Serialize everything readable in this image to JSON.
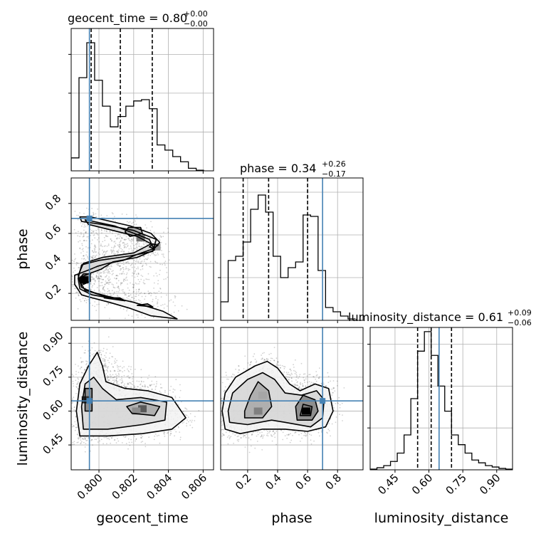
{
  "chart_data": {
    "type": "corner",
    "parameters": [
      "geocent_time",
      "phase",
      "luminosity_distance"
    ],
    "titles": [
      {
        "name": "geocent_time",
        "value": "0.80",
        "plus": "+0.00",
        "minus": "−0.00"
      },
      {
        "name": "phase",
        "value": "0.34",
        "plus": "+0.26",
        "minus": "−0.17"
      },
      {
        "name": "luminosity_distance",
        "value": "0.61",
        "plus": "+0.09",
        "minus": "−0.06"
      }
    ],
    "axis_ranges": {
      "geocent_time": [
        0.7984,
        0.8066
      ],
      "phase": [
        0.02,
        0.97
      ],
      "luminosity_distance": [
        0.34,
        0.97
      ]
    },
    "ticks": {
      "geocent_time": {
        "values": [
          0.8,
          0.802,
          0.804,
          0.806
        ],
        "labels": [
          "0.800",
          "0.802",
          "0.804",
          "0.806"
        ]
      },
      "phase": {
        "values": [
          0.2,
          0.4,
          0.6,
          0.8
        ],
        "labels": [
          "0.2",
          "0.4",
          "0.6",
          "0.8"
        ]
      },
      "luminosity_distance": {
        "values": [
          0.45,
          0.6,
          0.75,
          0.9
        ],
        "labels": [
          "0.45",
          "0.60",
          "0.75",
          "0.90"
        ]
      }
    },
    "truths": {
      "geocent_time": 0.79945,
      "phase": 0.7,
      "luminosity_distance": 0.645
    },
    "quantiles": {
      "geocent_time": [
        0.79955,
        0.80123,
        0.80307
      ],
      "phase": [
        0.17,
        0.34,
        0.6
      ],
      "luminosity_distance": [
        0.55,
        0.61,
        0.7
      ]
    },
    "histograms": {
      "geocent_time": {
        "edges": [
          0.7984,
          0.79885,
          0.7993,
          0.79975,
          0.8002,
          0.80065,
          0.8011,
          0.80155,
          0.802,
          0.80245,
          0.8029,
          0.80335,
          0.8038,
          0.80425,
          0.8047,
          0.80515,
          0.8056,
          0.80605
        ],
        "counts": [
          0.1,
          0.72,
          0.99,
          0.7,
          0.5,
          0.34,
          0.42,
          0.5,
          0.54,
          0.55,
          0.48,
          0.2,
          0.16,
          0.11,
          0.07,
          0.02,
          0.005
        ]
      },
      "phase": {
        "edges": [
          0.02,
          0.07,
          0.12,
          0.17,
          0.22,
          0.27,
          0.32,
          0.37,
          0.42,
          0.47,
          0.52,
          0.57,
          0.62,
          0.67,
          0.72,
          0.77,
          0.82,
          0.87,
          0.92
        ],
        "counts": [
          0.13,
          0.42,
          0.45,
          0.55,
          0.78,
          0.88,
          0.76,
          0.45,
          0.3,
          0.37,
          0.41,
          0.74,
          0.73,
          0.35,
          0.09,
          0.06,
          0.03,
          0.01
        ]
      },
      "luminosity_distance": {
        "edges": [
          0.34,
          0.37,
          0.4,
          0.43,
          0.46,
          0.49,
          0.52,
          0.55,
          0.58,
          0.61,
          0.64,
          0.67,
          0.7,
          0.73,
          0.76,
          0.79,
          0.82,
          0.85,
          0.88,
          0.91,
          0.94,
          0.97
        ],
        "counts": [
          0.005,
          0.015,
          0.03,
          0.06,
          0.12,
          0.25,
          0.51,
          0.85,
          0.99,
          0.82,
          0.6,
          0.42,
          0.25,
          0.18,
          0.12,
          0.07,
          0.05,
          0.03,
          0.02,
          0.01,
          0.005
        ]
      }
    },
    "histogram_ymax": {
      "geocent_time": 1.1,
      "phase": 1.0,
      "luminosity_distance": 1.02
    },
    "histogram_yticks": {
      "geocent_time": [
        0.3,
        0.6,
        0.9
      ],
      "phase": [
        0.3,
        0.6,
        0.9
      ],
      "luminosity_distance": [
        0.3,
        0.6,
        0.9
      ]
    },
    "contours_2d": {
      "geocent_time__phase": [
        [
          [
            0.7995,
            0.36
          ],
          [
            0.7999,
            0.38
          ],
          [
            0.8005,
            0.4
          ],
          [
            0.8014,
            0.42
          ],
          [
            0.8022,
            0.46
          ],
          [
            0.8032,
            0.5
          ],
          [
            0.8035,
            0.54
          ],
          [
            0.803,
            0.6
          ],
          [
            0.8018,
            0.65
          ],
          [
            0.8003,
            0.69
          ],
          [
            0.7995,
            0.71
          ],
          [
            0.7989,
            0.71
          ],
          [
            0.799,
            0.68
          ],
          [
            0.8002,
            0.66
          ],
          [
            0.802,
            0.62
          ],
          [
            0.8033,
            0.56
          ],
          [
            0.8031,
            0.48
          ],
          [
            0.8018,
            0.45
          ],
          [
            0.8,
            0.42
          ],
          [
            0.799,
            0.39
          ],
          [
            0.7988,
            0.3
          ],
          [
            0.7992,
            0.22
          ],
          [
            0.8005,
            0.18
          ],
          [
            0.802,
            0.14
          ],
          [
            0.8037,
            0.08
          ],
          [
            0.8045,
            0.03
          ],
          [
            0.803,
            0.05
          ],
          [
            0.8018,
            0.1
          ],
          [
            0.8006,
            0.14
          ],
          [
            0.7996,
            0.17
          ],
          [
            0.799,
            0.19
          ],
          [
            0.7986,
            0.26
          ],
          [
            0.7986,
            0.32
          ],
          [
            0.7995,
            0.36
          ]
        ],
        [
          [
            0.7994,
            0.33
          ],
          [
            0.8001,
            0.36
          ],
          [
            0.8008,
            0.41
          ],
          [
            0.8022,
            0.44
          ],
          [
            0.8032,
            0.49
          ],
          [
            0.8029,
            0.56
          ],
          [
            0.8018,
            0.61
          ],
          [
            0.8009,
            0.65
          ],
          [
            0.7997,
            0.68
          ],
          [
            0.7992,
            0.69
          ],
          [
            0.7994,
            0.66
          ],
          [
            0.8008,
            0.62
          ],
          [
            0.8022,
            0.58
          ],
          [
            0.803,
            0.53
          ],
          [
            0.802,
            0.47
          ],
          [
            0.8002,
            0.44
          ],
          [
            0.7991,
            0.4
          ],
          [
            0.7988,
            0.32
          ],
          [
            0.799,
            0.24
          ],
          [
            0.7998,
            0.2
          ],
          [
            0.8006,
            0.17
          ],
          [
            0.7996,
            0.19
          ],
          [
            0.7989,
            0.23
          ],
          [
            0.7988,
            0.3
          ],
          [
            0.7994,
            0.33
          ]
        ],
        [
          [
            0.8018,
            0.58
          ],
          [
            0.8025,
            0.6
          ],
          [
            0.8024,
            0.64
          ],
          [
            0.8017,
            0.64
          ],
          [
            0.8015,
            0.61
          ],
          [
            0.8018,
            0.58
          ]
        ],
        [
          [
            0.8031,
            0.5
          ],
          [
            0.8034,
            0.52
          ],
          [
            0.8031,
            0.53
          ],
          [
            0.8029,
            0.51
          ],
          [
            0.8031,
            0.5
          ]
        ],
        [
          [
            0.7991,
            0.26
          ],
          [
            0.7995,
            0.28
          ],
          [
            0.7995,
            0.33
          ],
          [
            0.7991,
            0.33
          ],
          [
            0.7989,
            0.3
          ],
          [
            0.7991,
            0.26
          ]
        ],
        [
          [
            0.8003,
            0.17
          ],
          [
            0.8015,
            0.15
          ],
          [
            0.8012,
            0.17
          ],
          [
            0.8003,
            0.17
          ]
        ],
        [
          [
            0.8022,
            0.12
          ],
          [
            0.8031,
            0.11
          ],
          [
            0.8028,
            0.13
          ],
          [
            0.8022,
            0.12
          ]
        ]
      ],
      "geocent_time__luminosity_distance": [
        [
          [
            0.7989,
            0.49
          ],
          [
            0.8005,
            0.49
          ],
          [
            0.8025,
            0.5
          ],
          [
            0.8042,
            0.52
          ],
          [
            0.805,
            0.57
          ],
          [
            0.8042,
            0.66
          ],
          [
            0.8028,
            0.69
          ],
          [
            0.8015,
            0.7
          ],
          [
            0.8004,
            0.73
          ],
          [
            0.8002,
            0.8
          ],
          [
            0.7999,
            0.86
          ],
          [
            0.7994,
            0.8
          ],
          [
            0.7989,
            0.72
          ],
          [
            0.7987,
            0.6
          ],
          [
            0.7989,
            0.49
          ]
        ],
        [
          [
            0.7991,
            0.52
          ],
          [
            0.8005,
            0.52
          ],
          [
            0.8025,
            0.54
          ],
          [
            0.8038,
            0.56
          ],
          [
            0.8039,
            0.64
          ],
          [
            0.8024,
            0.66
          ],
          [
            0.801,
            0.65
          ],
          [
            0.8002,
            0.7
          ],
          [
            0.7997,
            0.75
          ],
          [
            0.7992,
            0.72
          ],
          [
            0.799,
            0.62
          ],
          [
            0.7991,
            0.52
          ]
        ],
        [
          [
            0.8019,
            0.59
          ],
          [
            0.8032,
            0.58
          ],
          [
            0.8035,
            0.62
          ],
          [
            0.8024,
            0.64
          ],
          [
            0.8016,
            0.62
          ],
          [
            0.8019,
            0.59
          ]
        ],
        [
          [
            0.7992,
            0.6
          ],
          [
            0.7996,
            0.6
          ],
          [
            0.7996,
            0.7
          ],
          [
            0.7992,
            0.7
          ],
          [
            0.7992,
            0.6
          ]
        ]
      ],
      "phase__luminosity_distance": [
        [
          [
            0.05,
            0.52
          ],
          [
            0.15,
            0.5
          ],
          [
            0.3,
            0.52
          ],
          [
            0.45,
            0.52
          ],
          [
            0.6,
            0.51
          ],
          [
            0.72,
            0.53
          ],
          [
            0.77,
            0.6
          ],
          [
            0.74,
            0.7
          ],
          [
            0.65,
            0.72
          ],
          [
            0.55,
            0.69
          ],
          [
            0.48,
            0.72
          ],
          [
            0.4,
            0.79
          ],
          [
            0.33,
            0.82
          ],
          [
            0.25,
            0.8
          ],
          [
            0.12,
            0.75
          ],
          [
            0.05,
            0.68
          ],
          [
            0.03,
            0.6
          ],
          [
            0.05,
            0.52
          ]
        ],
        [
          [
            0.08,
            0.55
          ],
          [
            0.2,
            0.54
          ],
          [
            0.36,
            0.56
          ],
          [
            0.45,
            0.55
          ],
          [
            0.62,
            0.53
          ],
          [
            0.7,
            0.57
          ],
          [
            0.71,
            0.65
          ],
          [
            0.66,
            0.69
          ],
          [
            0.56,
            0.67
          ],
          [
            0.45,
            0.68
          ],
          [
            0.38,
            0.74
          ],
          [
            0.3,
            0.77
          ],
          [
            0.2,
            0.74
          ],
          [
            0.1,
            0.68
          ],
          [
            0.07,
            0.6
          ],
          [
            0.08,
            0.55
          ]
        ],
        [
          [
            0.18,
            0.57
          ],
          [
            0.3,
            0.57
          ],
          [
            0.36,
            0.62
          ],
          [
            0.34,
            0.69
          ],
          [
            0.27,
            0.73
          ],
          [
            0.22,
            0.67
          ],
          [
            0.18,
            0.6
          ],
          [
            0.18,
            0.57
          ]
        ],
        [
          [
            0.53,
            0.56
          ],
          [
            0.63,
            0.56
          ],
          [
            0.67,
            0.6
          ],
          [
            0.65,
            0.65
          ],
          [
            0.57,
            0.67
          ],
          [
            0.52,
            0.62
          ],
          [
            0.53,
            0.56
          ]
        ],
        [
          [
            0.55,
            0.58
          ],
          [
            0.62,
            0.58
          ],
          [
            0.63,
            0.62
          ],
          [
            0.57,
            0.63
          ],
          [
            0.55,
            0.58
          ]
        ]
      ]
    },
    "density_peaks_2d": {
      "geocent_time__phase": [
        [
          0.79915,
          0.29,
          1.0
        ],
        [
          0.8024,
          0.57,
          0.55
        ],
        [
          0.8033,
          0.51,
          0.4
        ],
        [
          0.8019,
          0.62,
          0.35
        ]
      ],
      "geocent_time__luminosity_distance": [
        [
          0.79925,
          0.65,
          0.8
        ],
        [
          0.8025,
          0.61,
          0.65
        ],
        [
          0.80215,
          0.6,
          0.45
        ]
      ],
      "phase__luminosity_distance": [
        [
          0.59,
          0.6,
          1.0
        ],
        [
          0.27,
          0.6,
          0.5
        ],
        [
          0.3,
          0.67,
          0.35
        ]
      ]
    }
  }
}
